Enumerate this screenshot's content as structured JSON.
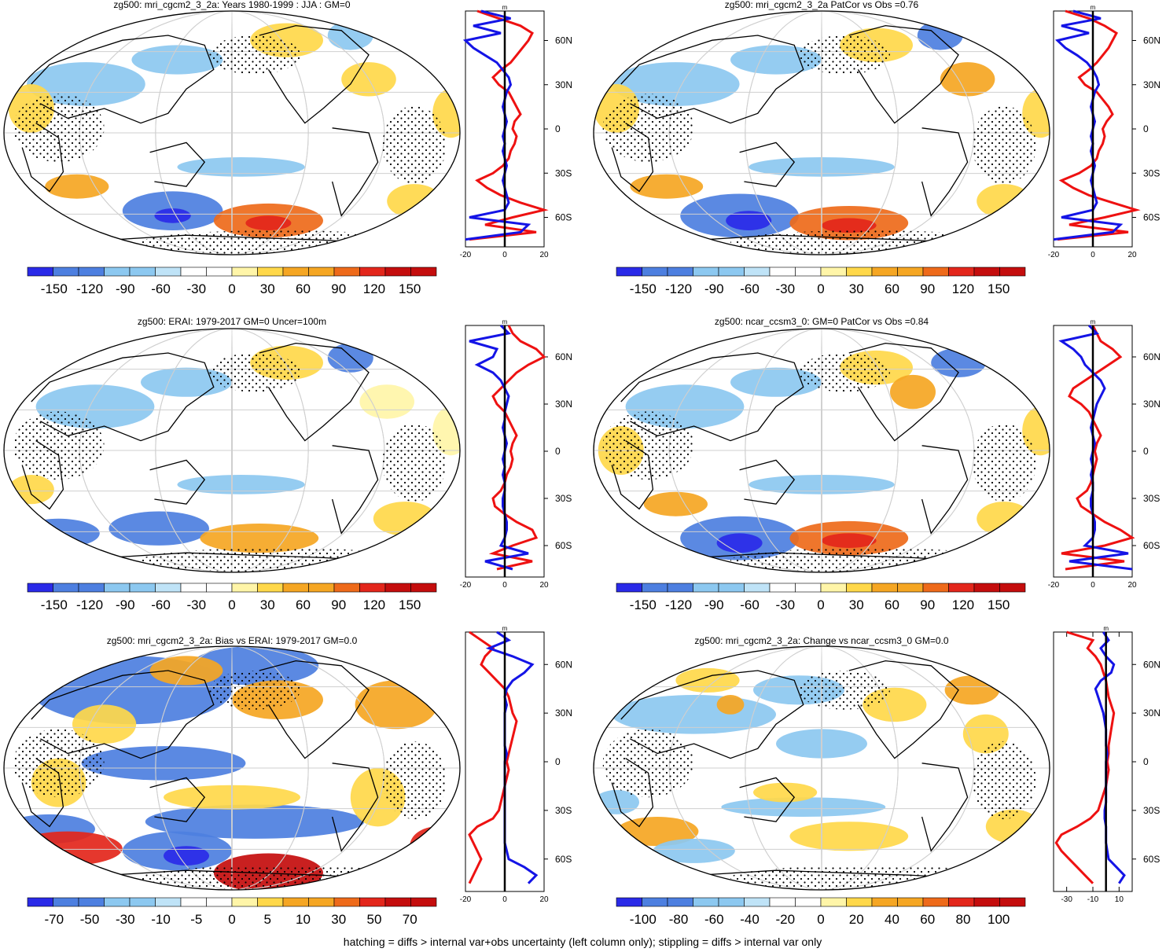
{
  "colors": {
    "blue_strong": "#2a2ae8",
    "blue_mid": "#4d7fe0",
    "blue_light": "#8cc8f0",
    "blue_pale": "#bfe3f7",
    "white": "#ffffff",
    "yellow_pale": "#fff5a8",
    "yellow": "#ffd84a",
    "orange": "#f5a623",
    "orange_dark": "#ee6a1a",
    "red": "#e3261b",
    "red_dark": "#c40d0d",
    "profile_red": "#ee1111",
    "profile_blue": "#1414e6",
    "ocean_bg": "#ffffff"
  },
  "footer": "hatching = diffs > internal var+obs uncertainty (left column only); stippling = diffs > internal var only",
  "chart_data": [
    {
      "type": "heatmap",
      "title": "zg500: mri_cgcm2_3_2a: Years 1980-1999 : JJA : GM=0",
      "colorbar_labels": [
        "-150",
        "-120",
        "-90",
        "-60",
        "-30",
        "0",
        "30",
        "60",
        "90",
        "120",
        "150"
      ],
      "lat_labels": [
        "60N",
        "30N",
        "0",
        "30S",
        "60S"
      ],
      "profile": {
        "unit": "m",
        "xlim": [
          -20,
          20
        ],
        "xticks": [
          "-20",
          "0",
          "20"
        ],
        "series": [
          {
            "name": "red",
            "lat": [
              80,
              75,
              70,
              65,
              60,
              55,
              50,
              45,
              40,
              35,
              30,
              25,
              20,
              15,
              10,
              5,
              0,
              -5,
              -10,
              -15,
              -20,
              -25,
              -30,
              -35,
              -40,
              -45,
              -50,
              -55,
              -60,
              -65,
              -70,
              -75
            ],
            "values": [
              -14,
              -3,
              8,
              14,
              12,
              9,
              6,
              3,
              -2,
              -6,
              -3,
              2,
              4,
              6,
              8,
              5,
              4,
              6,
              5,
              3,
              2,
              -1,
              -6,
              -14,
              -9,
              -2,
              8,
              20,
              4,
              -10,
              16,
              -18
            ]
          },
          {
            "name": "blue",
            "lat": [
              80,
              75,
              70,
              65,
              60,
              55,
              50,
              45,
              40,
              35,
              30,
              25,
              20,
              15,
              10,
              5,
              0,
              -5,
              -10,
              -15,
              -20,
              -25,
              -30,
              -35,
              -40,
              -45,
              -50,
              -55,
              -60,
              -65,
              -70,
              -75
            ],
            "values": [
              -12,
              3,
              -16,
              -2,
              -20,
              -16,
              -10,
              -4,
              -1,
              2,
              3,
              1,
              0,
              -1,
              0,
              1,
              0,
              -1,
              0,
              -1,
              0,
              1,
              0,
              -1,
              0,
              1,
              2,
              0,
              -18,
              12,
              8,
              -20
            ]
          }
        ]
      }
    },
    {
      "type": "heatmap",
      "title": "zg500: mri_cgcm2_3_2a PatCor vs Obs =0.76",
      "colorbar_labels": [
        "-150",
        "-120",
        "-90",
        "-60",
        "-30",
        "0",
        "30",
        "60",
        "90",
        "120",
        "150"
      ],
      "lat_labels": [
        "60N",
        "30N",
        "0",
        "30S",
        "60S"
      ],
      "profile": {
        "unit": "m",
        "xlim": [
          -20,
          20
        ],
        "xticks": [
          "-20",
          "0",
          "20"
        ],
        "series": [
          {
            "name": "red",
            "lat": [
              80,
              75,
              70,
              65,
              60,
              55,
              50,
              45,
              40,
              35,
              30,
              25,
              20,
              15,
              10,
              5,
              0,
              -5,
              -10,
              -15,
              -20,
              -25,
              -30,
              -35,
              -40,
              -45,
              -50,
              -55,
              -60,
              -65,
              -70,
              -75
            ],
            "values": [
              -14,
              -2,
              6,
              12,
              10,
              8,
              5,
              2,
              -2,
              -7,
              -4,
              2,
              5,
              8,
              10,
              7,
              5,
              6,
              5,
              3,
              2,
              -1,
              -7,
              -16,
              -10,
              -2,
              10,
              22,
              6,
              -12,
              18,
              -18
            ]
          },
          {
            "name": "blue",
            "lat": [
              80,
              75,
              70,
              65,
              60,
              55,
              50,
              45,
              40,
              35,
              30,
              25,
              20,
              15,
              10,
              5,
              0,
              -5,
              -10,
              -15,
              -20,
              -25,
              -30,
              -35,
              -40,
              -45,
              -50,
              -55,
              -60,
              -65,
              -70,
              -75
            ],
            "values": [
              -10,
              4,
              -16,
              -2,
              -18,
              -14,
              -8,
              -3,
              0,
              2,
              3,
              1,
              0,
              -1,
              0,
              1,
              0,
              -1,
              0,
              -1,
              0,
              1,
              0,
              -1,
              0,
              1,
              2,
              0,
              -16,
              14,
              10,
              -20
            ]
          }
        ]
      }
    },
    {
      "type": "heatmap",
      "title": "zg500: ERAI: 1979-2017 GM=0 Uncer=100m",
      "colorbar_labels": [
        "-150",
        "-120",
        "-90",
        "-60",
        "-30",
        "0",
        "30",
        "60",
        "90",
        "120",
        "150"
      ],
      "lat_labels": [
        "60N",
        "30N",
        "0",
        "30S",
        "60S"
      ],
      "profile": {
        "unit": "m",
        "xlim": [
          -20,
          20
        ],
        "xticks": [
          "-20",
          "0",
          "20"
        ],
        "series": [
          {
            "name": "red",
            "lat": [
              80,
              75,
              70,
              65,
              60,
              55,
              50,
              45,
              40,
              35,
              30,
              25,
              20,
              15,
              10,
              5,
              0,
              -5,
              -10,
              -15,
              -20,
              -25,
              -30,
              -35,
              -40,
              -45,
              -50,
              -55,
              -60,
              -65,
              -70,
              -75
            ],
            "values": [
              2,
              4,
              8,
              16,
              20,
              12,
              6,
              2,
              -2,
              -6,
              -4,
              0,
              2,
              4,
              6,
              4,
              3,
              4,
              3,
              1,
              0,
              -2,
              -6,
              -5,
              0,
              6,
              14,
              16,
              4,
              -6,
              14,
              -4
            ]
          },
          {
            "name": "blue",
            "lat": [
              80,
              75,
              70,
              65,
              60,
              55,
              50,
              45,
              40,
              35,
              30,
              25,
              20,
              15,
              10,
              5,
              0,
              -5,
              -10,
              -15,
              -20,
              -25,
              -30,
              -35,
              -40,
              -45,
              -50,
              -55,
              -60,
              -65,
              -70,
              -75
            ],
            "values": [
              -2,
              2,
              -18,
              -4,
              -6,
              -14,
              -6,
              -2,
              0,
              2,
              1,
              0,
              0,
              -1,
              0,
              1,
              0,
              -1,
              0,
              -1,
              0,
              0,
              -1,
              -1,
              0,
              1,
              1,
              0,
              -2,
              12,
              -10,
              4
            ]
          }
        ]
      }
    },
    {
      "type": "heatmap",
      "title": "zg500: ncar_ccsm3_0: GM=0 PatCor vs Obs =0.84",
      "colorbar_labels": [
        "-150",
        "-120",
        "-90",
        "-60",
        "-30",
        "0",
        "30",
        "60",
        "90",
        "120",
        "150"
      ],
      "lat_labels": [
        "60N",
        "30N",
        "0",
        "30S",
        "60S"
      ],
      "profile": {
        "unit": "m",
        "xlim": [
          -20,
          20
        ],
        "xticks": [
          "-20",
          "0",
          "20"
        ],
        "series": [
          {
            "name": "red",
            "lat": [
              80,
              75,
              70,
              65,
              60,
              55,
              50,
              45,
              40,
              35,
              30,
              25,
              20,
              15,
              10,
              5,
              0,
              -5,
              -10,
              -15,
              -20,
              -25,
              -30,
              -35,
              -40,
              -45,
              -50,
              -55,
              -60,
              -65,
              -70,
              -75
            ],
            "values": [
              0,
              2,
              4,
              10,
              14,
              8,
              2,
              -4,
              -10,
              -12,
              -6,
              -2,
              0,
              2,
              4,
              2,
              1,
              2,
              1,
              0,
              -1,
              -3,
              -8,
              -6,
              0,
              6,
              14,
              20,
              6,
              -16,
              16,
              -14
            ]
          },
          {
            "name": "blue",
            "lat": [
              80,
              75,
              70,
              65,
              60,
              55,
              50,
              45,
              40,
              35,
              30,
              25,
              20,
              15,
              10,
              5,
              0,
              -5,
              -10,
              -15,
              -20,
              -25,
              -30,
              -35,
              -40,
              -45,
              -50,
              -55,
              -60,
              -65,
              -70,
              -75
            ],
            "values": [
              -2,
              2,
              -16,
              -10,
              -6,
              -4,
              0,
              4,
              6,
              4,
              2,
              1,
              0,
              -1,
              0,
              1,
              0,
              -1,
              0,
              -1,
              0,
              0,
              -1,
              -1,
              0,
              1,
              1,
              0,
              -4,
              18,
              -12,
              20
            ]
          }
        ]
      }
    },
    {
      "type": "heatmap",
      "title": "zg500: mri_cgcm2_3_2a: Bias vs ERAI: 1979-2017 GM=0.0",
      "colorbar_labels": [
        "-70",
        "-50",
        "-30",
        "-10",
        "-5",
        "0",
        "5",
        "10",
        "30",
        "50",
        "70"
      ],
      "lat_labels": [
        "60N",
        "30N",
        "0",
        "30S",
        "60S"
      ],
      "profile": {
        "unit": "m",
        "xlim": [
          -20,
          20
        ],
        "xticks": [
          "-20",
          "0",
          "20"
        ],
        "series": [
          {
            "name": "red",
            "lat": [
              80,
              75,
              70,
              65,
              60,
              55,
              50,
              45,
              40,
              35,
              30,
              25,
              20,
              15,
              10,
              5,
              0,
              -5,
              -10,
              -15,
              -20,
              -25,
              -30,
              -35,
              -40,
              -45,
              -50,
              -55,
              -60,
              -65,
              -70,
              -75
            ],
            "values": [
              -18,
              -12,
              -6,
              -10,
              -12,
              -8,
              -4,
              0,
              2,
              3,
              4,
              6,
              5,
              4,
              3,
              2,
              1,
              2,
              1,
              0,
              -1,
              -2,
              -3,
              -6,
              -14,
              -18,
              -16,
              -14,
              -12,
              -14,
              -16,
              -18
            ]
          },
          {
            "name": "blue",
            "lat": [
              80,
              75,
              70,
              65,
              60,
              55,
              50,
              45,
              40,
              35,
              30,
              25,
              20,
              15,
              10,
              5,
              0,
              -5,
              -10,
              -15,
              -20,
              -25,
              -30,
              -35,
              -40,
              -45,
              -50,
              -55,
              -60,
              -65,
              -70,
              -75
            ],
            "values": [
              -4,
              2,
              -8,
              4,
              14,
              10,
              4,
              1,
              0,
              1,
              0,
              0,
              0,
              0,
              0,
              1,
              0,
              0,
              0,
              0,
              0,
              0,
              0,
              0,
              0,
              0,
              0,
              1,
              2,
              10,
              16,
              12
            ]
          }
        ]
      }
    },
    {
      "type": "heatmap",
      "title": "zg500: mri_cgcm2_3_2a: Change vs ncar_ccsm3_0 GM=0.0",
      "colorbar_labels": [
        "-100",
        "-80",
        "-60",
        "-40",
        "-20",
        "0",
        "20",
        "40",
        "60",
        "80",
        "100"
      ],
      "lat_labels": [
        "60N",
        "30N",
        "0",
        "30S",
        "60S"
      ],
      "profile": {
        "unit": "m",
        "xlim": [
          -40,
          20
        ],
        "xticks": [
          "-30",
          "-10",
          "10"
        ],
        "series": [
          {
            "name": "red",
            "lat": [
              80,
              75,
              70,
              65,
              60,
              55,
              50,
              45,
              40,
              35,
              30,
              25,
              20,
              15,
              10,
              5,
              0,
              -5,
              -10,
              -15,
              -20,
              -25,
              -30,
              -35,
              -40,
              -45,
              -50,
              -55,
              -60,
              -65,
              -70,
              -75
            ],
            "values": [
              -30,
              -10,
              -14,
              -8,
              -4,
              -2,
              0,
              1,
              2,
              4,
              6,
              5,
              4,
              3,
              2,
              2,
              1,
              2,
              1,
              0,
              -2,
              -4,
              -6,
              -12,
              -22,
              -34,
              -38,
              -34,
              -28,
              -22,
              -16,
              -10
            ]
          },
          {
            "name": "blue",
            "lat": [
              80,
              75,
              70,
              65,
              60,
              55,
              50,
              45,
              40,
              35,
              30,
              25,
              20,
              15,
              10,
              5,
              0,
              -5,
              -10,
              -15,
              -20,
              -25,
              -30,
              -35,
              -40,
              -45,
              -50,
              -55,
              -60,
              -65,
              -70,
              -75
            ],
            "values": [
              -2,
              2,
              -4,
              0,
              6,
              4,
              -4,
              -8,
              -6,
              -4,
              -2,
              -1,
              0,
              0,
              0,
              1,
              0,
              0,
              0,
              0,
              0,
              0,
              -1,
              -1,
              0,
              0,
              0,
              1,
              2,
              8,
              14,
              10
            ]
          }
        ]
      }
    }
  ]
}
